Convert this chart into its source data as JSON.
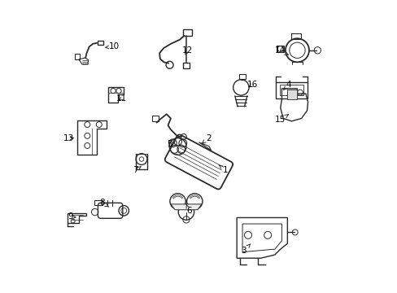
{
  "background_color": "#ffffff",
  "line_color": "#2a2a2a",
  "line_width": 1.0,
  "labels": [
    [
      1,
      0.595,
      0.415,
      0.565,
      0.44
    ],
    [
      2,
      0.535,
      0.53,
      0.51,
      0.51
    ],
    [
      3,
      0.66,
      0.13,
      0.69,
      0.16
    ],
    [
      4,
      0.82,
      0.72,
      0.8,
      0.7
    ],
    [
      5,
      0.395,
      0.51,
      0.415,
      0.515
    ],
    [
      6,
      0.465,
      0.27,
      0.455,
      0.295
    ],
    [
      7,
      0.275,
      0.415,
      0.295,
      0.43
    ],
    [
      8,
      0.155,
      0.3,
      0.18,
      0.285
    ],
    [
      9,
      0.042,
      0.25,
      0.065,
      0.248
    ],
    [
      10,
      0.2,
      0.855,
      0.165,
      0.852
    ],
    [
      11,
      0.225,
      0.67,
      0.21,
      0.656
    ],
    [
      12,
      0.46,
      0.84,
      0.445,
      0.82
    ],
    [
      13,
      0.038,
      0.53,
      0.065,
      0.53
    ],
    [
      14,
      0.79,
      0.84,
      0.82,
      0.825
    ],
    [
      15,
      0.79,
      0.595,
      0.82,
      0.615
    ],
    [
      16,
      0.69,
      0.72,
      0.67,
      0.705
    ]
  ]
}
